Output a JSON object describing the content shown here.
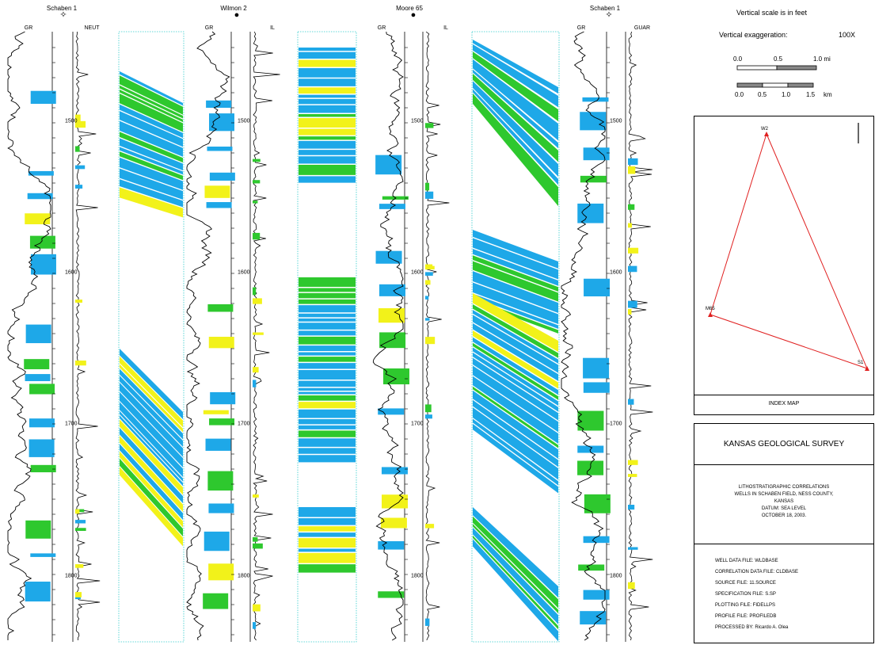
{
  "wells": [
    {
      "name": "Schaben 1",
      "symbol": "✧",
      "curves": [
        "GR",
        "NEUT"
      ],
      "depths": [
        "1500",
        "1600",
        "1700",
        "1800"
      ]
    },
    {
      "name": "Wilmon 2",
      "symbol": "●",
      "curves": [
        "GR",
        "IL"
      ],
      "depths": [
        "1500",
        "1600",
        "1700",
        "1800"
      ]
    },
    {
      "name": "Moore 65",
      "symbol": "●",
      "curves": [
        "GR",
        "IL"
      ],
      "depths": [
        "1500",
        "1600",
        "1700",
        "1800"
      ]
    },
    {
      "name": "Schaben 1",
      "symbol": "✧",
      "curves": [
        "GR",
        "GUAR"
      ],
      "depths": [
        "1500",
        "1600",
        "1700",
        "1800"
      ]
    }
  ],
  "scale": {
    "vertical_scale": "Vertical scale is in feet",
    "exaggeration_label": "Vertical exaggeration:",
    "exaggeration_value": "100X",
    "mi_ticks": [
      "0.0",
      "0.5",
      "1.0 mi"
    ],
    "km_ticks": [
      "0.0",
      "0.5",
      "1.0",
      "1.5",
      "km"
    ]
  },
  "index_map": {
    "label": "INDEX MAP",
    "points": [
      "W2",
      "M65",
      "S1"
    ]
  },
  "survey": {
    "name": "KANSAS GEOLOGICAL SURVEY",
    "lines": [
      "LITHOSTRATIGRAPHIC CORRELATIONS",
      "WELLS IN SCHABEN FIELD, NESS COUNTY,",
      "KANSAS",
      "DATUM: SEA LEVEL",
      "OCTOBER 18, 2003."
    ]
  },
  "files": [
    "WELL DATA FILE:   WLDBASE",
    "CORRELATION DATA FILE:   CLDBASE",
    "SOURCE FILE:   11.SOURCE",
    "SPECIFICATION FILE:   S.SP",
    "PLOTTING FILE:   FIDELLPS",
    "PROFILE FILE:   PROFILEDB",
    "PROCESSED BY:   Ricardo A. Olea"
  ],
  "colors": {
    "blue": "#1ea8e8",
    "green": "#2ec82e",
    "yellow": "#f2f21a",
    "cyan": "#33cccc",
    "red": "#e02020"
  }
}
